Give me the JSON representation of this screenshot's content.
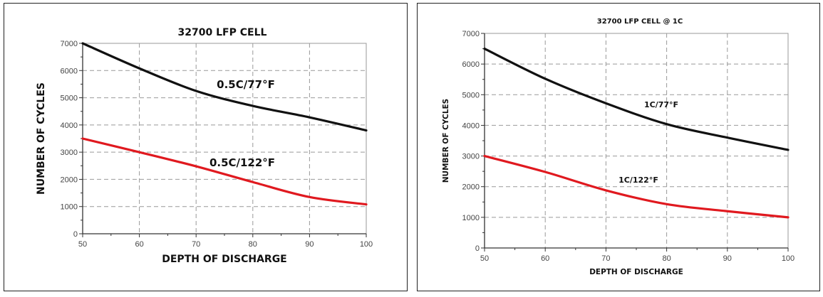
{
  "chart_data": [
    {
      "type": "line",
      "title": "32700 LFP CELL",
      "xlabel": "DEPTH OF DISCHARGE",
      "ylabel": "NUMBER OF CYCLES",
      "xlim": [
        50,
        100
      ],
      "ylim": [
        0,
        7000
      ],
      "xticks": [
        50,
        60,
        70,
        80,
        90,
        100
      ],
      "yticks": [
        0,
        1000,
        2000,
        3000,
        4000,
        5000,
        6000,
        7000
      ],
      "grid": true,
      "x": [
        50,
        60,
        70,
        80,
        90,
        100
      ],
      "series": [
        {
          "name": "0.5C/77°F",
          "color": "#111111",
          "values": [
            7000,
            6080,
            5250,
            4700,
            4280,
            3800
          ]
        },
        {
          "name": "0.5C/122°F",
          "color": "#e0191f",
          "values": [
            3500,
            3000,
            2480,
            1900,
            1350,
            1080
          ]
        }
      ]
    },
    {
      "type": "line",
      "title": "32700 LFP CELL @ 1C",
      "xlabel": "DEPTH OF DISCHARGE",
      "ylabel": "NUMBER OF CYCLES",
      "xlim": [
        50,
        100
      ],
      "ylim": [
        0,
        7000
      ],
      "xticks": [
        50,
        60,
        70,
        80,
        90,
        100
      ],
      "yticks": [
        0,
        1000,
        2000,
        3000,
        4000,
        5000,
        6000,
        7000
      ],
      "grid": true,
      "x": [
        50,
        60,
        70,
        80,
        90,
        100
      ],
      "series": [
        {
          "name": "1C/77°F",
          "color": "#111111",
          "values": [
            6500,
            5520,
            4720,
            4040,
            3600,
            3200
          ]
        },
        {
          "name": "1C/122°F",
          "color": "#e0191f",
          "values": [
            3000,
            2480,
            1880,
            1430,
            1200,
            1000
          ]
        }
      ]
    }
  ]
}
